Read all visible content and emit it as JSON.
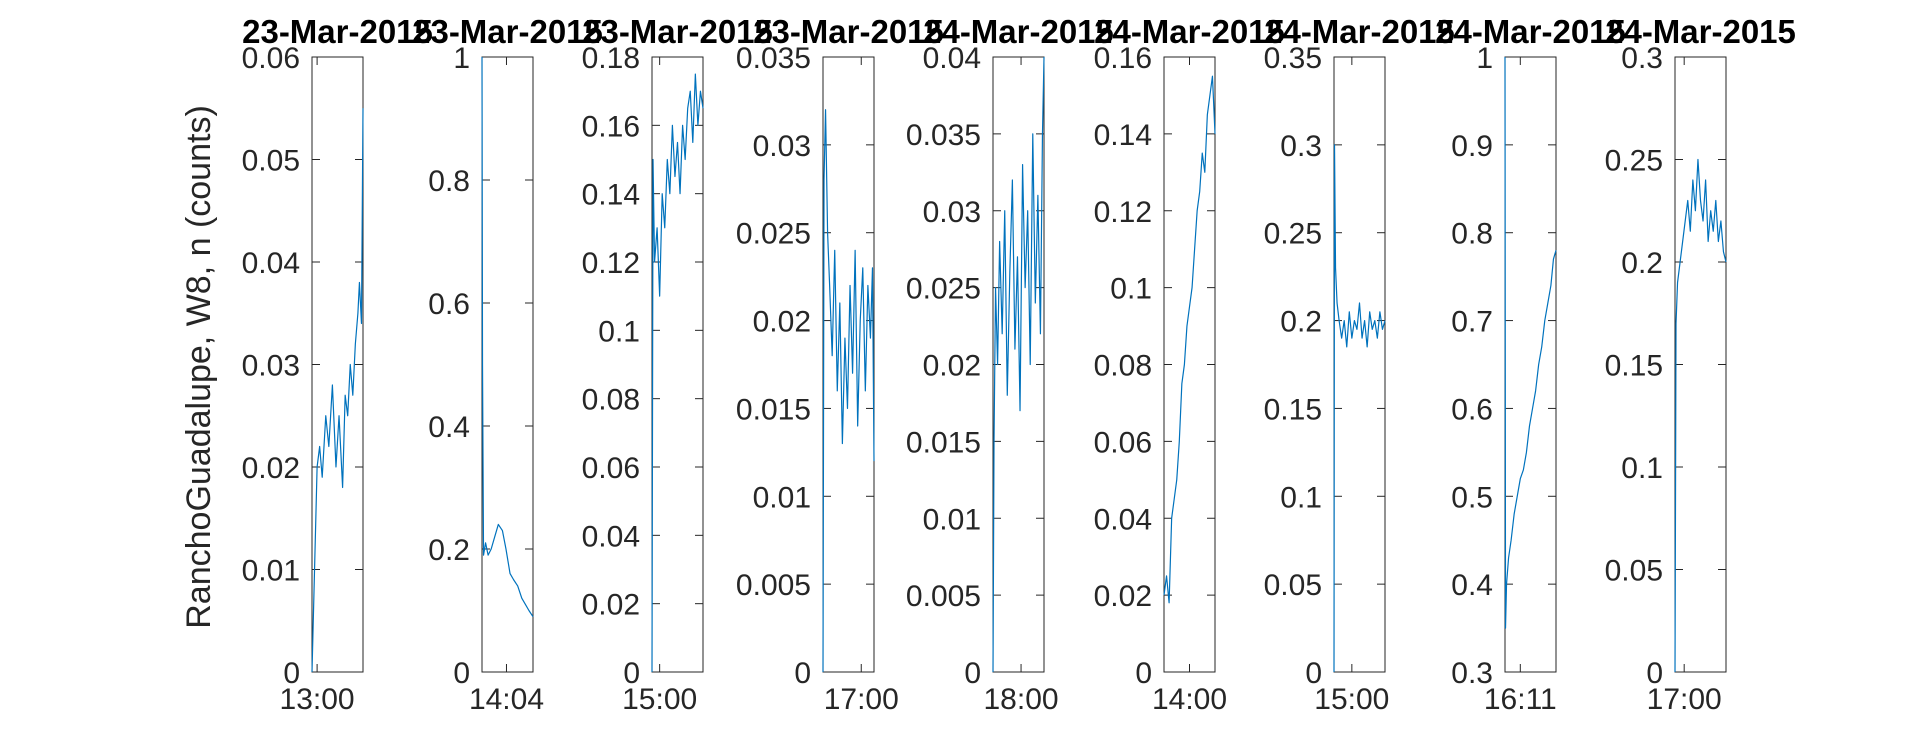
{
  "figure": {
    "ylabel": "RanchoGuadalupe, W8, n (counts)",
    "line_color": "#0072BD"
  },
  "chart_data": [
    {
      "type": "line",
      "title": "23-Mar-2015",
      "ylim": [
        0,
        0.06
      ],
      "yticks": [
        "0",
        "0.01",
        "0.02",
        "0.03",
        "0.04",
        "0.05",
        "0.06"
      ],
      "xticks": [
        {
          "label": "13:00",
          "x": 0.1
        }
      ],
      "series": [
        {
          "x": [
            0.0,
            0.04,
            0.1,
            0.15,
            0.2,
            0.27,
            0.33,
            0.4,
            0.47,
            0.53,
            0.6,
            0.65,
            0.7,
            0.75,
            0.8,
            0.85,
            0.9,
            0.93,
            0.97,
            1.0
          ],
          "y": [
            0.0,
            0.008,
            0.02,
            0.022,
            0.019,
            0.025,
            0.022,
            0.028,
            0.02,
            0.025,
            0.018,
            0.027,
            0.025,
            0.03,
            0.027,
            0.032,
            0.035,
            0.038,
            0.034,
            0.055
          ]
        }
      ]
    },
    {
      "type": "line",
      "title": "23-Mar-2015",
      "ylim": [
        0,
        1
      ],
      "yticks": [
        "0",
        "0.2",
        "0.4",
        "0.6",
        "0.8",
        "1"
      ],
      "xticks": [
        {
          "label": "14:04",
          "x": 0.48
        }
      ],
      "series": [
        {
          "x": [
            0.0,
            0.01,
            0.03,
            0.07,
            0.12,
            0.18,
            0.25,
            0.32,
            0.4,
            0.47,
            0.55,
            0.62,
            0.7,
            0.78,
            0.85,
            0.92,
            1.0
          ],
          "y": [
            1.0,
            0.5,
            0.19,
            0.21,
            0.19,
            0.2,
            0.22,
            0.24,
            0.23,
            0.2,
            0.16,
            0.15,
            0.14,
            0.12,
            0.11,
            0.1,
            0.09
          ]
        }
      ]
    },
    {
      "type": "line",
      "title": "23-Mar-2015",
      "ylim": [
        0,
        0.18
      ],
      "yticks": [
        "0",
        "0.02",
        "0.04",
        "0.06",
        "0.08",
        "0.1",
        "0.12",
        "0.14",
        "0.16",
        "0.18"
      ],
      "xticks": [
        {
          "label": "15:00",
          "x": 0.15
        }
      ],
      "series": [
        {
          "x": [
            0.0,
            0.02,
            0.05,
            0.1,
            0.15,
            0.2,
            0.25,
            0.3,
            0.35,
            0.4,
            0.45,
            0.5,
            0.55,
            0.6,
            0.65,
            0.7,
            0.75,
            0.8,
            0.85,
            0.9,
            0.95,
            1.0
          ],
          "y": [
            0.0,
            0.15,
            0.12,
            0.13,
            0.11,
            0.14,
            0.13,
            0.15,
            0.14,
            0.16,
            0.145,
            0.155,
            0.14,
            0.16,
            0.15,
            0.165,
            0.17,
            0.155,
            0.175,
            0.16,
            0.17,
            0.165
          ]
        }
      ]
    },
    {
      "type": "line",
      "title": "23-Mar-2015",
      "ylim": [
        0,
        0.035
      ],
      "yticks": [
        "0",
        "0.005",
        "0.01",
        "0.015",
        "0.02",
        "0.025",
        "0.03",
        "0.035"
      ],
      "xticks": [
        {
          "label": "17:00",
          "x": 0.75
        }
      ],
      "series": [
        {
          "x": [
            0.0,
            0.02,
            0.05,
            0.09,
            0.13,
            0.18,
            0.23,
            0.28,
            0.33,
            0.38,
            0.43,
            0.48,
            0.53,
            0.58,
            0.63,
            0.68,
            0.73,
            0.78,
            0.83,
            0.88,
            0.93,
            0.97,
            1.0
          ],
          "y": [
            0.0,
            0.028,
            0.032,
            0.025,
            0.022,
            0.018,
            0.024,
            0.016,
            0.021,
            0.013,
            0.019,
            0.015,
            0.022,
            0.017,
            0.024,
            0.014,
            0.02,
            0.023,
            0.016,
            0.022,
            0.019,
            0.023,
            0.012
          ]
        }
      ]
    },
    {
      "type": "line",
      "title": "24-Mar-2015",
      "ylim": [
        0,
        0.04
      ],
      "yticks": [
        "0",
        "0.005",
        "0.01",
        "0.015",
        "0.02",
        "0.025",
        "0.03",
        "0.035",
        "0.04"
      ],
      "xticks": [
        {
          "label": "18:00",
          "x": 0.55
        }
      ],
      "series": [
        {
          "x": [
            0.0,
            0.02,
            0.05,
            0.09,
            0.13,
            0.18,
            0.23,
            0.28,
            0.33,
            0.38,
            0.43,
            0.48,
            0.53,
            0.58,
            0.63,
            0.68,
            0.73,
            0.78,
            0.83,
            0.88,
            0.93,
            0.97,
            1.0
          ],
          "y": [
            0.0,
            0.015,
            0.025,
            0.02,
            0.028,
            0.022,
            0.03,
            0.018,
            0.026,
            0.032,
            0.021,
            0.027,
            0.017,
            0.033,
            0.025,
            0.03,
            0.02,
            0.035,
            0.024,
            0.031,
            0.022,
            0.035,
            0.04
          ]
        }
      ]
    },
    {
      "type": "line",
      "title": "24-Mar-2015",
      "ylim": [
        0,
        0.16
      ],
      "yticks": [
        "0",
        "0.02",
        "0.04",
        "0.06",
        "0.08",
        "0.1",
        "0.12",
        "0.14",
        "0.16"
      ],
      "xticks": [
        {
          "label": "14:00",
          "x": 0.5
        }
      ],
      "series": [
        {
          "x": [
            0.0,
            0.05,
            0.1,
            0.15,
            0.2,
            0.25,
            0.3,
            0.35,
            0.4,
            0.45,
            0.5,
            0.55,
            0.6,
            0.65,
            0.7,
            0.75,
            0.8,
            0.85,
            0.9,
            0.95,
            1.0
          ],
          "y": [
            0.02,
            0.025,
            0.018,
            0.04,
            0.045,
            0.05,
            0.06,
            0.075,
            0.08,
            0.09,
            0.095,
            0.1,
            0.11,
            0.12,
            0.125,
            0.135,
            0.13,
            0.145,
            0.15,
            0.155,
            0.14
          ]
        }
      ]
    },
    {
      "type": "line",
      "title": "24-Mar-2015",
      "ylim": [
        0,
        0.35
      ],
      "yticks": [
        "0",
        "0.05",
        "0.1",
        "0.15",
        "0.2",
        "0.25",
        "0.3",
        "0.35"
      ],
      "xticks": [
        {
          "label": "15:00",
          "x": 0.35
        }
      ],
      "series": [
        {
          "x": [
            0.0,
            0.01,
            0.03,
            0.06,
            0.1,
            0.15,
            0.2,
            0.25,
            0.3,
            0.35,
            0.4,
            0.45,
            0.5,
            0.55,
            0.6,
            0.65,
            0.7,
            0.75,
            0.8,
            0.85,
            0.9,
            0.95,
            1.0
          ],
          "y": [
            0.0,
            0.3,
            0.23,
            0.21,
            0.2,
            0.19,
            0.2,
            0.185,
            0.205,
            0.19,
            0.2,
            0.195,
            0.21,
            0.19,
            0.2,
            0.185,
            0.205,
            0.195,
            0.2,
            0.19,
            0.205,
            0.195,
            0.2
          ]
        }
      ]
    },
    {
      "type": "line",
      "title": "24-Mar-2015",
      "ylim": [
        0.3,
        1
      ],
      "yticks": [
        "0.3",
        "0.4",
        "0.5",
        "0.6",
        "0.7",
        "0.8",
        "0.9",
        "1"
      ],
      "xticks": [
        {
          "label": "16:11",
          "x": 0.3
        }
      ],
      "series": [
        {
          "x": [
            0.0,
            0.01,
            0.03,
            0.07,
            0.12,
            0.18,
            0.24,
            0.3,
            0.36,
            0.42,
            0.48,
            0.54,
            0.6,
            0.66,
            0.72,
            0.78,
            0.84,
            0.9,
            0.95,
            1.0
          ],
          "y": [
            1.0,
            0.35,
            0.4,
            0.43,
            0.45,
            0.48,
            0.5,
            0.52,
            0.53,
            0.55,
            0.58,
            0.6,
            0.62,
            0.65,
            0.67,
            0.7,
            0.72,
            0.74,
            0.77,
            0.78
          ]
        }
      ]
    },
    {
      "type": "line",
      "title": "24-Mar-2015",
      "ylim": [
        0,
        0.3
      ],
      "yticks": [
        "0",
        "0.05",
        "0.1",
        "0.15",
        "0.2",
        "0.25",
        "0.3"
      ],
      "xticks": [
        {
          "label": "17:00",
          "x": 0.18
        }
      ],
      "series": [
        {
          "x": [
            0.0,
            0.02,
            0.05,
            0.1,
            0.15,
            0.2,
            0.25,
            0.3,
            0.35,
            0.4,
            0.45,
            0.5,
            0.55,
            0.6,
            0.65,
            0.7,
            0.75,
            0.8,
            0.85,
            0.9,
            0.95,
            1.0
          ],
          "y": [
            0.0,
            0.17,
            0.19,
            0.2,
            0.21,
            0.22,
            0.23,
            0.215,
            0.24,
            0.225,
            0.25,
            0.23,
            0.22,
            0.24,
            0.21,
            0.225,
            0.215,
            0.23,
            0.21,
            0.22,
            0.205,
            0.2
          ]
        }
      ]
    }
  ]
}
